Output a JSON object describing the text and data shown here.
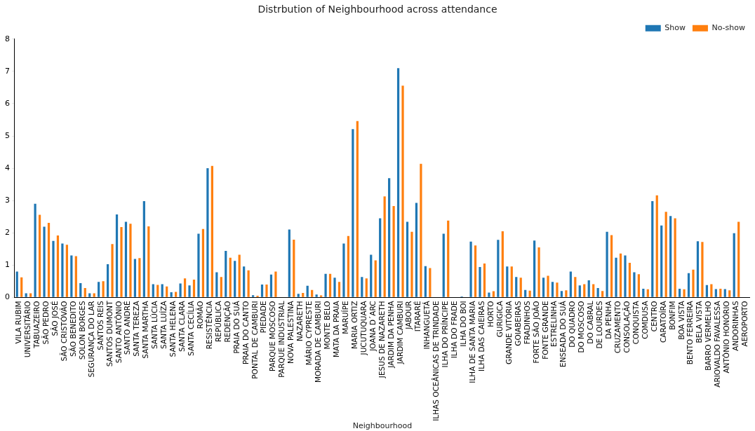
{
  "chart_data": {
    "type": "bar",
    "title": "Distrbution of Neighbourhood across attendance",
    "xlabel": "Neighbourhood",
    "categories": [
      "VILA RUBIM",
      "UNIVERSITÁRIO",
      "TABUAZEIRO",
      "SÃO PEDRO",
      "SÃO JOSÉ",
      "SÃO CRISTÓVÃO",
      "SÃO BENEDITO",
      "SOLON BORGES",
      "SEGURANÇA DO LAR",
      "SANTOS REIS",
      "SANTOS DUMONT",
      "SANTO ANTÔNIO",
      "SANTO ANDRÉ",
      "SANTA TEREZA",
      "SANTA MARTHA",
      "SANTA LÚCIA",
      "SANTA LUÍZA",
      "SANTA HELENA",
      "SANTA CLARA",
      "SANTA CECÍLIA",
      "ROMÃO",
      "RESISTÊNCIA",
      "REPÚBLICA",
      "REDENÇÃO",
      "PRAIA DO SUÁ",
      "PRAIA DO CANTO",
      "PONTAL DE CAMBURI",
      "PIEDADE",
      "PARQUE MOSCOSO",
      "PARQUE INDUSTRIAL",
      "NOVA PALESTINA",
      "NAZARETH",
      "MÁRIO CYPRESTE",
      "MORADA DE CAMBURI",
      "MONTE BELO",
      "MATA DA PRAIA",
      "MARUÍPE",
      "MARIA ORTIZ",
      "JUCUTUQUARA",
      "JOANA D´ARC",
      "JESUS DE NAZARETH",
      "JARDIM DA PENHA",
      "JARDIM CAMBURI",
      "JABOUR",
      "ITARARÉ",
      "INHANGUETÁ",
      "ILHAS OCEÂNICAS DE TRINDADE",
      "ILHA DO PRÍNCIPE",
      "ILHA DO FRADE",
      "ILHA DO BOI",
      "ILHA DE SANTA MARIA",
      "ILHA DAS CAIEIRAS",
      "HORTO",
      "GURIGICA",
      "GRANDE VITÓRIA",
      "GOIABEIRAS",
      "FRADINHOS",
      "FORTE SÃO JOÃO",
      "FONTE GRANDE",
      "ESTRELINHA",
      "ENSEADA DO SUÁ",
      "DO QUADRO",
      "DO MOSCOSO",
      "DO CABRAL",
      "DE LOURDES",
      "DA PENHA",
      "CRUZAMENTO",
      "CONSOLAÇÃO",
      "CONQUISTA",
      "COMDUSA",
      "CENTRO",
      "CARATOÍRA",
      "BONFIM",
      "BOA VISTA",
      "BENTO FERREIRA",
      "BELA VISTA",
      "BARRO VERMELHO",
      "ARIOVALDO FAVALESSA",
      "ANTÔNIO HONÓRIO",
      "ANDORINHAS",
      "AEROPORTO"
    ],
    "series": [
      {
        "name": "Show",
        "color": "#1f77b4",
        "values": [
          0.8,
          0.13,
          2.9,
          2.19,
          1.75,
          1.67,
          1.3,
          0.44,
          0.13,
          0.48,
          1.03,
          2.57,
          2.34,
          1.19,
          2.98,
          0.41,
          0.41,
          0.16,
          0.43,
          0.37,
          1.97,
          4.0,
          0.78,
          1.44,
          1.13,
          0.96,
          0.07,
          0.4,
          0.71,
          0,
          2.1,
          0.11,
          0.36,
          0.09,
          0.73,
          0.61,
          1.67,
          5.21,
          0.63,
          1.32,
          2.45,
          3.69,
          7.1,
          2.34,
          2.93,
          0.97,
          0,
          1.97,
          0,
          0.03,
          1.73,
          0.94,
          0.15,
          1.78,
          0.96,
          0.63,
          0.23,
          1.76,
          0.61,
          0.48,
          0.2,
          0.8,
          0.37,
          0.53,
          0.29,
          2.03,
          1.23,
          1.3,
          0.78,
          0.27,
          2.98,
          2.23,
          2.52,
          0.27,
          0.75,
          1.74,
          0.38,
          0.26,
          0.26,
          1.99,
          0
        ]
      },
      {
        "name": "No-show",
        "color": "#ff7f0e",
        "values": [
          0.62,
          0.13,
          2.56,
          2.31,
          1.92,
          1.63,
          1.28,
          0.29,
          0.13,
          0.5,
          1.65,
          2.18,
          2.28,
          1.22,
          2.2,
          0.39,
          0.34,
          0.17,
          0.59,
          0.55,
          2.12,
          4.07,
          0.63,
          1.23,
          1.32,
          0.84,
          0.05,
          0.4,
          0.8,
          0,
          1.79,
          0.14,
          0.23,
          0.06,
          0.73,
          0.48,
          1.9,
          5.46,
          0.59,
          1.15,
          3.13,
          2.83,
          6.56,
          2.03,
          4.14,
          0.91,
          0,
          2.38,
          0,
          0,
          1.61,
          1.05,
          0.19,
          2.05,
          0.96,
          0.61,
          0.21,
          1.55,
          0.67,
          0.46,
          0.22,
          0.63,
          0.41,
          0.41,
          0.2,
          1.93,
          1.36,
          1.07,
          0.72,
          0.25,
          3.16,
          2.65,
          2.45,
          0.25,
          0.86,
          1.72,
          0.41,
          0.27,
          0.22,
          2.34,
          0
        ]
      }
    ],
    "ylim": [
      0,
      8
    ],
    "yticks": [
      0,
      1,
      2,
      3,
      4,
      5,
      6,
      7,
      8
    ],
    "grid": false,
    "legend": "top right"
  }
}
